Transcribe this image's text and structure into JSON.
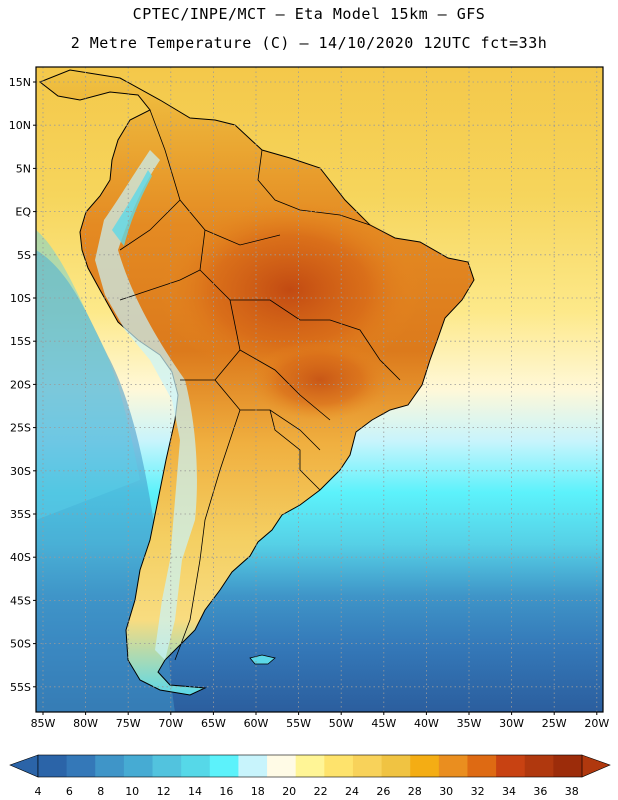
{
  "title": {
    "line1": "CPTEC/INPE/MCT –  Eta Model 15km – GFS",
    "line2": "2 Metre Temperature (C) – 14/10/2020 12UTC fct=33h"
  },
  "map": {
    "region": "South America",
    "lat_labels": [
      "15N",
      "10N",
      "5N",
      "EQ",
      "5S",
      "10S",
      "15S",
      "20S",
      "25S",
      "30S",
      "35S",
      "40S",
      "45S",
      "50S",
      "55S"
    ],
    "lon_labels": [
      "85W",
      "80W",
      "75W",
      "70W",
      "65W",
      "60W",
      "55W",
      "50W",
      "45W",
      "40W",
      "35W",
      "30W",
      "25W",
      "20W"
    ]
  },
  "colorbar": {
    "levels": [
      "4",
      "6",
      "8",
      "10",
      "12",
      "14",
      "16",
      "18",
      "20",
      "22",
      "24",
      "26",
      "28",
      "30",
      "32",
      "34",
      "36",
      "38"
    ],
    "colors": [
      "#2b64a8",
      "#3478b8",
      "#3f95c8",
      "#46abd3",
      "#52c3de",
      "#56d8e8",
      "#5cf2fb",
      "#c8f4fc",
      "#fffbe6",
      "#fff596",
      "#fee36c",
      "#f8d25a",
      "#f0c342",
      "#f4ad14",
      "#ea8e1f",
      "#de6a13",
      "#c84212",
      "#b0380e",
      "#9c2c0a"
    ],
    "low_end_color": "#2b64a8",
    "high_end_color": "#b0380e"
  },
  "colors": {
    "border": "#000000",
    "grid": "#9a9a9a",
    "ocean_north": "#f6cf52",
    "ocean_south": "#2c5f9e",
    "land_hot": "#d8701a"
  }
}
